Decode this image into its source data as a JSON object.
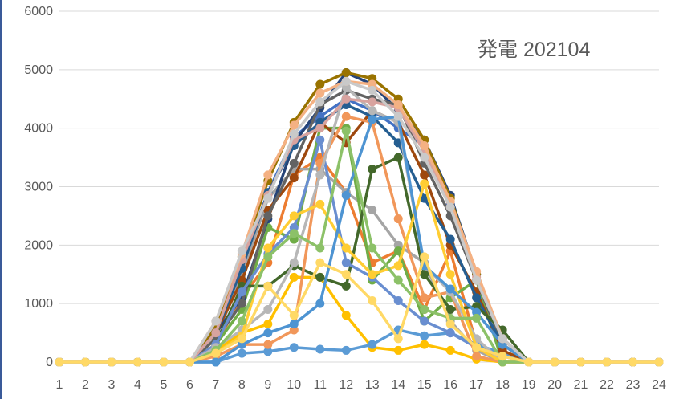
{
  "chart_data": {
    "type": "line",
    "title": "発電 202104",
    "xlabel": "",
    "ylabel": "",
    "x": [
      1,
      2,
      3,
      4,
      5,
      6,
      7,
      8,
      9,
      10,
      11,
      12,
      13,
      14,
      15,
      16,
      17,
      18,
      19,
      20,
      21,
      22,
      23,
      24
    ],
    "ylim": [
      0,
      6000
    ],
    "yticks": [
      0,
      1000,
      2000,
      3000,
      4000,
      5000,
      6000
    ],
    "grid": "horizontal",
    "legend": "none",
    "series": [
      {
        "color": "#4472C4",
        "values": [
          0,
          0,
          0,
          0,
          0,
          0,
          600,
          1700,
          2900,
          3850,
          4200,
          4500,
          4300,
          4000,
          3700,
          2700,
          1500,
          400,
          0,
          0,
          0,
          0,
          0,
          0
        ]
      },
      {
        "color": "#ED7D31",
        "values": [
          0,
          0,
          0,
          0,
          0,
          0,
          300,
          1100,
          1700,
          3200,
          3500,
          2900,
          1700,
          1900,
          900,
          1900,
          300,
          0,
          0,
          0,
          0,
          0,
          0,
          0
        ]
      },
      {
        "color": "#A5A5A5",
        "values": [
          0,
          0,
          0,
          0,
          0,
          0,
          400,
          1500,
          2800,
          3300,
          3300,
          2900,
          2600,
          2000,
          1700,
          700,
          200,
          0,
          0,
          0,
          0,
          0,
          0,
          0
        ]
      },
      {
        "color": "#FFC000",
        "values": [
          0,
          0,
          0,
          0,
          0,
          0,
          200,
          500,
          650,
          1450,
          1450,
          800,
          250,
          200,
          300,
          200,
          50,
          0,
          0,
          0,
          0,
          0,
          0,
          0
        ]
      },
      {
        "color": "#5B9BD5",
        "values": [
          0,
          0,
          0,
          0,
          0,
          0,
          0,
          150,
          180,
          250,
          220,
          200,
          300,
          550,
          450,
          500,
          300,
          150,
          0,
          0,
          0,
          0,
          0,
          0
        ]
      },
      {
        "color": "#70AD47",
        "values": [
          0,
          0,
          0,
          0,
          0,
          0,
          300,
          900,
          2300,
          2100,
          4000,
          4000,
          1400,
          1900,
          700,
          1100,
          1400,
          0,
          0,
          0,
          0,
          0,
          0,
          0
        ]
      },
      {
        "color": "#264478",
        "values": [
          0,
          0,
          0,
          0,
          0,
          0,
          500,
          1100,
          2450,
          3750,
          4350,
          4950,
          4750,
          4300,
          3800,
          2850,
          1500,
          400,
          0,
          0,
          0,
          0,
          0,
          0
        ]
      },
      {
        "color": "#9E480E",
        "values": [
          0,
          0,
          0,
          0,
          0,
          0,
          500,
          1400,
          2600,
          3150,
          4100,
          3750,
          4300,
          4100,
          3200,
          2000,
          1200,
          200,
          0,
          0,
          0,
          0,
          0,
          0
        ]
      },
      {
        "color": "#636363",
        "values": [
          0,
          0,
          0,
          0,
          0,
          0,
          400,
          1000,
          2500,
          3400,
          4400,
          4650,
          4500,
          4400,
          3400,
          2500,
          1400,
          300,
          0,
          0,
          0,
          0,
          0,
          0
        ]
      },
      {
        "color": "#997300",
        "values": [
          0,
          0,
          0,
          0,
          0,
          0,
          600,
          1800,
          3100,
          4100,
          4750,
          4950,
          4850,
          4500,
          3800,
          2800,
          1500,
          400,
          0,
          0,
          0,
          0,
          0,
          0
        ]
      },
      {
        "color": "#255E91",
        "values": [
          0,
          0,
          0,
          0,
          0,
          0,
          500,
          1600,
          2900,
          3700,
          4100,
          4400,
          4200,
          3750,
          2800,
          2100,
          1100,
          300,
          0,
          0,
          0,
          0,
          0,
          0
        ]
      },
      {
        "color": "#43682B",
        "values": [
          0,
          0,
          0,
          0,
          0,
          0,
          300,
          1300,
          1300,
          1650,
          1450,
          1300,
          3300,
          3500,
          1500,
          900,
          950,
          550,
          0,
          0,
          0,
          0,
          0,
          0
        ]
      },
      {
        "color": "#698ED0",
        "values": [
          0,
          0,
          0,
          0,
          0,
          0,
          300,
          1200,
          1850,
          2300,
          3800,
          1700,
          1450,
          1050,
          700,
          500,
          250,
          100,
          0,
          0,
          0,
          0,
          0,
          0
        ]
      },
      {
        "color": "#F1975A",
        "values": [
          0,
          0,
          0,
          0,
          0,
          0,
          100,
          300,
          300,
          550,
          3400,
          4200,
          4100,
          2450,
          1100,
          1200,
          100,
          0,
          0,
          0,
          0,
          0,
          0,
          0
        ]
      },
      {
        "color": "#B7B7B7",
        "values": [
          0,
          0,
          0,
          0,
          0,
          0,
          250,
          550,
          900,
          1700,
          3200,
          4700,
          4300,
          4100,
          1650,
          1200,
          400,
          0,
          0,
          0,
          0,
          0,
          0,
          0
        ]
      },
      {
        "color": "#FFCD33",
        "values": [
          0,
          0,
          0,
          0,
          0,
          0,
          150,
          450,
          1950,
          2500,
          2700,
          1950,
          1500,
          1650,
          3050,
          1500,
          250,
          0,
          0,
          0,
          0,
          0,
          0,
          0
        ]
      },
      {
        "color": "#4E94D2",
        "values": [
          0,
          0,
          0,
          0,
          0,
          0,
          0,
          300,
          500,
          650,
          1000,
          2850,
          4150,
          4200,
          1650,
          1250,
          850,
          300,
          0,
          0,
          0,
          0,
          0,
          0
        ]
      },
      {
        "color": "#8CC168",
        "values": [
          0,
          0,
          0,
          0,
          0,
          0,
          200,
          700,
          1800,
          2200,
          1950,
          3950,
          1950,
          1400,
          900,
          750,
          750,
          0,
          0,
          0,
          0,
          0,
          0,
          0
        ]
      },
      {
        "color": "#D8A39F",
        "values": [
          0,
          0,
          0,
          0,
          0,
          0,
          500,
          1750,
          2850,
          3800,
          4000,
          4500,
          4450,
          4350,
          3600,
          2650,
          1450,
          400,
          0,
          0,
          0,
          0,
          0,
          0
        ]
      },
      {
        "color": "#F4B183",
        "values": [
          0,
          0,
          0,
          0,
          0,
          0,
          700,
          1850,
          3200,
          4050,
          4600,
          4800,
          4750,
          4400,
          3700,
          2750,
          1550,
          400,
          0,
          0,
          0,
          0,
          0,
          0
        ]
      },
      {
        "color": "#C9C9C9",
        "values": [
          0,
          0,
          0,
          0,
          0,
          0,
          700,
          1900,
          2800,
          3900,
          4450,
          4800,
          4650,
          4200,
          3500,
          2650,
          1400,
          400,
          0,
          0,
          0,
          0,
          0,
          0
        ]
      },
      {
        "color": "#FFD966",
        "values": [
          0,
          0,
          0,
          0,
          0,
          0,
          150,
          400,
          1300,
          800,
          1700,
          1500,
          1050,
          400,
          1800,
          650,
          250,
          100,
          0,
          0,
          0,
          0,
          0,
          0
        ]
      }
    ]
  }
}
